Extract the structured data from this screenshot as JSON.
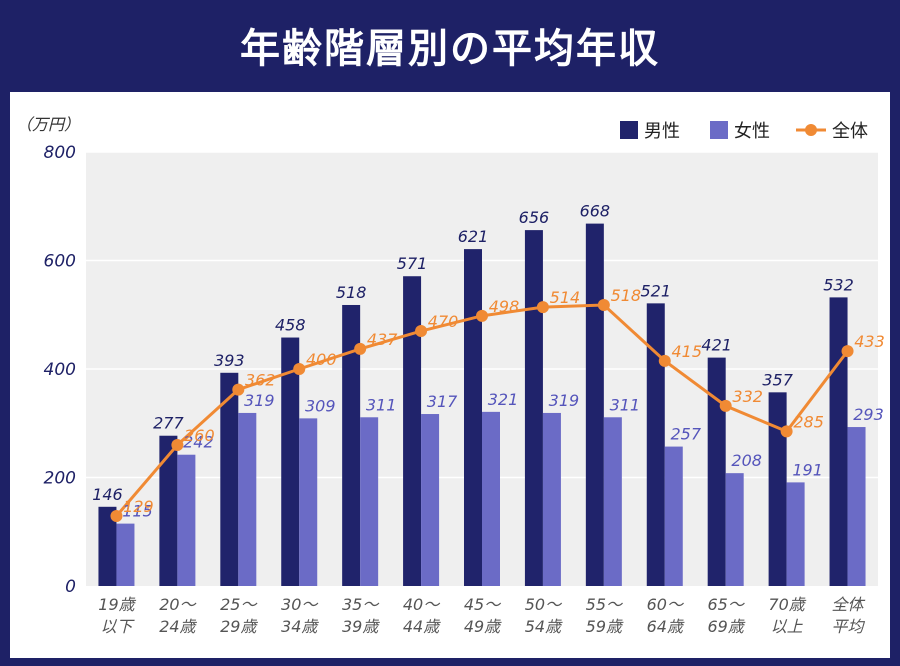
{
  "header": {
    "title": "年齢階層別の平均年収"
  },
  "chart_data": {
    "type": "bar",
    "title": "年齢階層別の平均年収",
    "ylabel": "（万円）",
    "ylim": [
      0,
      800
    ],
    "yticks": [
      0,
      200,
      400,
      600,
      800
    ],
    "grid": true,
    "legend_position": "top-right",
    "categories": [
      [
        "19歳",
        "以下"
      ],
      [
        "20～",
        "24歳"
      ],
      [
        "25～",
        "29歳"
      ],
      [
        "30～",
        "34歳"
      ],
      [
        "35～",
        "39歳"
      ],
      [
        "40～",
        "44歳"
      ],
      [
        "45～",
        "49歳"
      ],
      [
        "50～",
        "54歳"
      ],
      [
        "55～",
        "59歳"
      ],
      [
        "60～",
        "64歳"
      ],
      [
        "65～",
        "69歳"
      ],
      [
        "70歳",
        "以上"
      ],
      [
        "全体",
        "平均"
      ]
    ],
    "series": [
      {
        "name": "男性",
        "type": "bar",
        "color": "#20236b",
        "values": [
          146,
          277,
          393,
          458,
          518,
          571,
          621,
          656,
          668,
          521,
          421,
          357,
          532
        ]
      },
      {
        "name": "女性",
        "type": "bar",
        "color": "#6b6bc6",
        "values": [
          115,
          242,
          319,
          309,
          311,
          317,
          321,
          319,
          311,
          257,
          208,
          191,
          293
        ]
      },
      {
        "name": "全体",
        "type": "line",
        "color": "#f08a34",
        "values": [
          129,
          260,
          362,
          400,
          437,
          470,
          498,
          514,
          518,
          415,
          332,
          285,
          433
        ]
      }
    ]
  }
}
